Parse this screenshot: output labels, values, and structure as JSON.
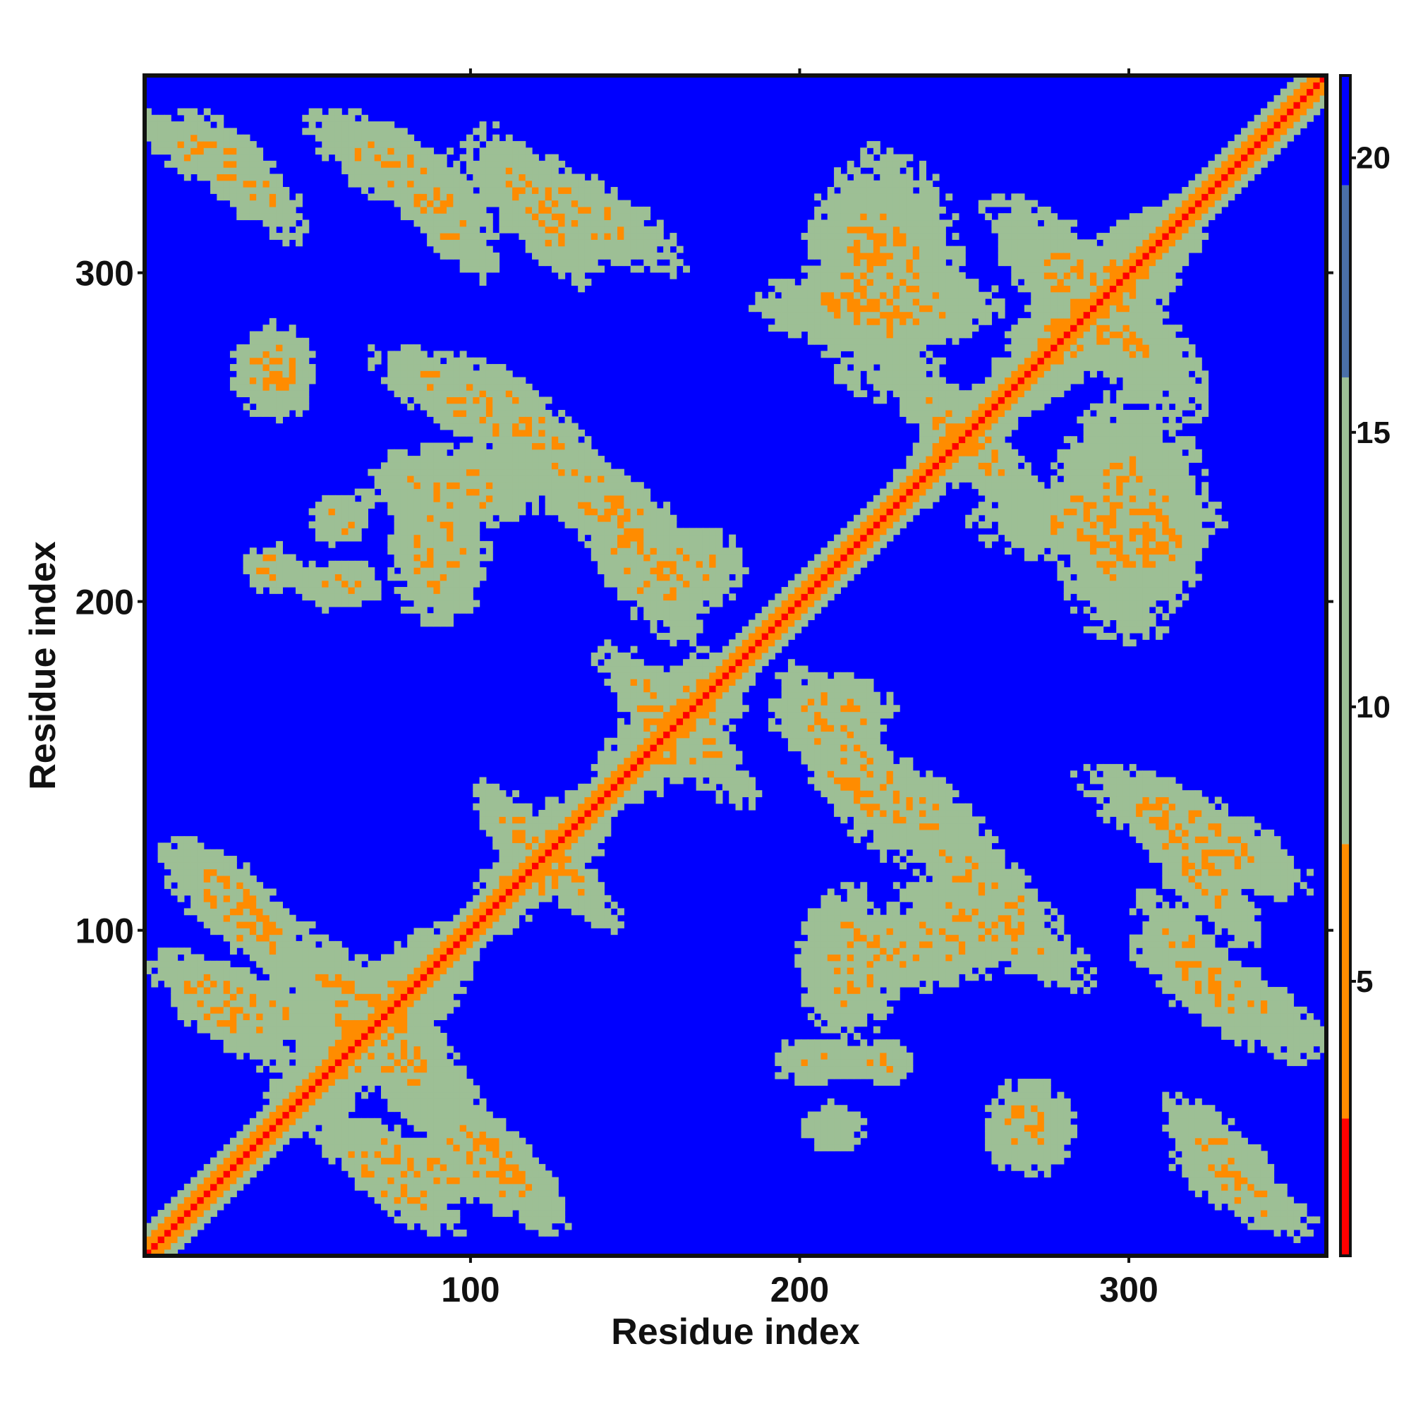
{
  "chart_data": {
    "type": "heatmap",
    "title": "",
    "xlabel": "Residue index",
    "ylabel": "Residue index",
    "xlim": [
      1,
      360
    ],
    "ylim": [
      1,
      360
    ],
    "x_ticks": [
      100,
      200,
      300
    ],
    "y_ticks": [
      100,
      200,
      300
    ],
    "colorbar": {
      "ticks": [
        5,
        10,
        15,
        20
      ],
      "range": [
        0,
        21.5
      ],
      "colors": {
        "near": "#ff0000",
        "mid": "#ff8c00",
        "far_contact": "#9dbf95",
        "background": "#0000ff",
        "top": "#4a6fa8"
      }
    },
    "description_values": {
      "diagonal_distance": 3.8,
      "contact_patch_distance": 10,
      "background_distance": 21
    },
    "contact_regions": [
      {
        "x": 30,
        "y": 105,
        "dx": 25,
        "dy": 22,
        "orient": "anti"
      },
      {
        "x": 25,
        "y": 75,
        "dx": 22,
        "dy": 18,
        "orient": "anti"
      },
      {
        "x": 70,
        "y": 70,
        "dx": 30,
        "dy": 30,
        "orient": "cross"
      },
      {
        "x": 80,
        "y": 30,
        "dx": 30,
        "dy": 14,
        "orient": "anti"
      },
      {
        "x": 108,
        "y": 30,
        "dx": 20,
        "dy": 20,
        "orient": "anti"
      },
      {
        "x": 120,
        "y": 125,
        "dx": 18,
        "dy": 18,
        "orient": "cross"
      },
      {
        "x": 160,
        "y": 165,
        "dx": 20,
        "dy": 20,
        "orient": "cross"
      },
      {
        "x": 40,
        "y": 270,
        "dx": 14,
        "dy": 16,
        "orient": "blob"
      },
      {
        "x": 100,
        "y": 260,
        "dx": 30,
        "dy": 18,
        "orient": "anti"
      },
      {
        "x": 140,
        "y": 230,
        "dx": 30,
        "dy": 22,
        "orient": "anti"
      },
      {
        "x": 165,
        "y": 210,
        "dx": 20,
        "dy": 14,
        "orient": "blob"
      },
      {
        "x": 90,
        "y": 215,
        "dx": 16,
        "dy": 25,
        "orient": "blob"
      },
      {
        "x": 20,
        "y": 335,
        "dx": 22,
        "dy": 14,
        "orient": "anti"
      },
      {
        "x": 80,
        "y": 330,
        "dx": 30,
        "dy": 20,
        "orient": "anti"
      },
      {
        "x": 130,
        "y": 320,
        "dx": 35,
        "dy": 20,
        "orient": "anti"
      },
      {
        "x": 225,
        "y": 300,
        "dx": 25,
        "dy": 40,
        "orient": "blob"
      },
      {
        "x": 250,
        "y": 250,
        "dx": 20,
        "dy": 20,
        "orient": "cross"
      },
      {
        "x": 290,
        "y": 225,
        "dx": 40,
        "dy": 14,
        "orient": "blob"
      },
      {
        "x": 310,
        "y": 220,
        "dx": 14,
        "dy": 16,
        "orient": "blob"
      },
      {
        "x": 290,
        "y": 290,
        "dx": 30,
        "dy": 30,
        "orient": "cross"
      },
      {
        "x": 215,
        "y": 150,
        "dx": 22,
        "dy": 30,
        "orient": "anti"
      },
      {
        "x": 255,
        "y": 115,
        "dx": 25,
        "dy": 20,
        "orient": "anti"
      },
      {
        "x": 235,
        "y": 95,
        "dx": 30,
        "dy": 14,
        "orient": "blob"
      },
      {
        "x": 320,
        "y": 120,
        "dx": 20,
        "dy": 25,
        "orient": "anti"
      },
      {
        "x": 320,
        "y": 90,
        "dx": 18,
        "dy": 22,
        "orient": "anti"
      },
      {
        "x": 270,
        "y": 40,
        "dx": 14,
        "dy": 14,
        "orient": "blob"
      },
      {
        "x": 330,
        "y": 30,
        "dx": 20,
        "dy": 20,
        "orient": "anti"
      },
      {
        "x": 205,
        "y": 60,
        "dx": 14,
        "dy": 8,
        "orient": "blob"
      },
      {
        "x": 210,
        "y": 40,
        "dx": 10,
        "dy": 8,
        "orient": "blob"
      },
      {
        "x": 225,
        "y": 60,
        "dx": 10,
        "dy": 8,
        "orient": "blob"
      }
    ]
  }
}
